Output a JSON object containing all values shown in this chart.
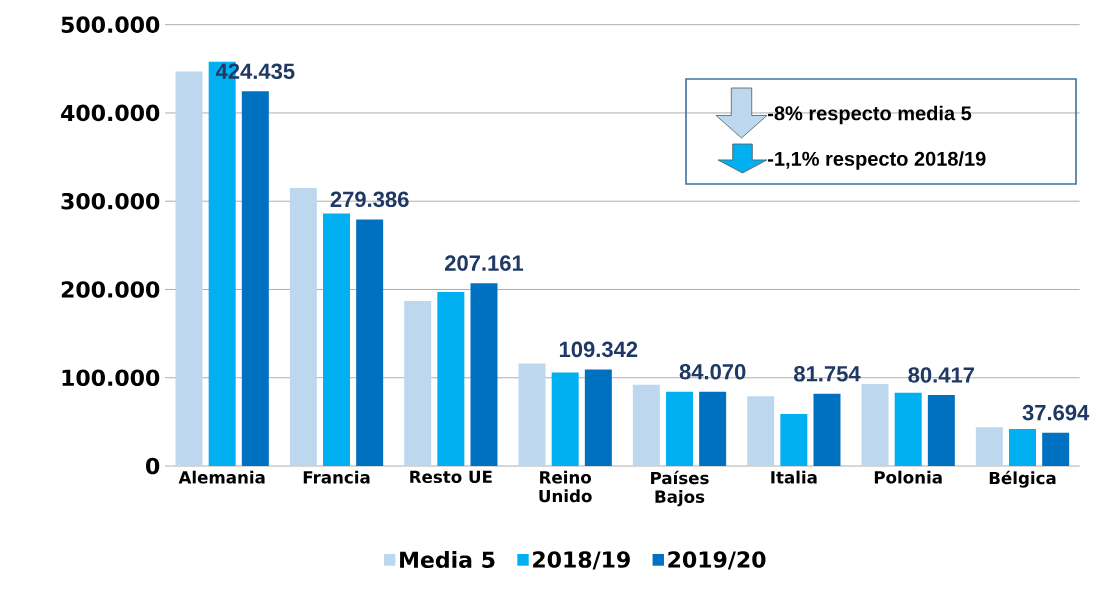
{
  "chart_data": {
    "type": "bar",
    "categories": [
      "Alemania",
      "Francia",
      "Resto UE",
      "Reino Unido",
      "Países Bajos",
      "Italia",
      "Polonia",
      "Bélgica"
    ],
    "series": [
      {
        "name": "Media 5",
        "color": "#bdd7ee",
        "values": [
          447000,
          315000,
          187000,
          116000,
          92000,
          79000,
          93000,
          44000
        ]
      },
      {
        "name": "2018/19",
        "color": "#00b0f0",
        "values": [
          458000,
          286000,
          197000,
          106000,
          84000,
          59000,
          83000,
          42000
        ]
      },
      {
        "name": "2019/20",
        "color": "#0070c0",
        "values": [
          424435,
          279386,
          207161,
          109342,
          84070,
          81754,
          80417,
          37694
        ],
        "value_labels": [
          "424.435",
          "279.386",
          "207.161",
          "109.342",
          "84.070",
          "81.754",
          "80.417",
          "37.694"
        ]
      }
    ],
    "ylim": [
      0,
      500000
    ],
    "yticks": [
      0,
      {
        "value": 100000,
        "label": "100.000"
      },
      {
        "value": 200000,
        "label": "200.000"
      },
      {
        "value": 300000,
        "label": "300.000"
      },
      {
        "value": 400000,
        "label": "400.000"
      },
      {
        "value": 500000,
        "label": "500.000"
      }
    ],
    "grid": "y",
    "legend": "bottom",
    "annotations": [
      "-8% respecto media 5",
      "-1,1% respecto 2018/19"
    ]
  }
}
